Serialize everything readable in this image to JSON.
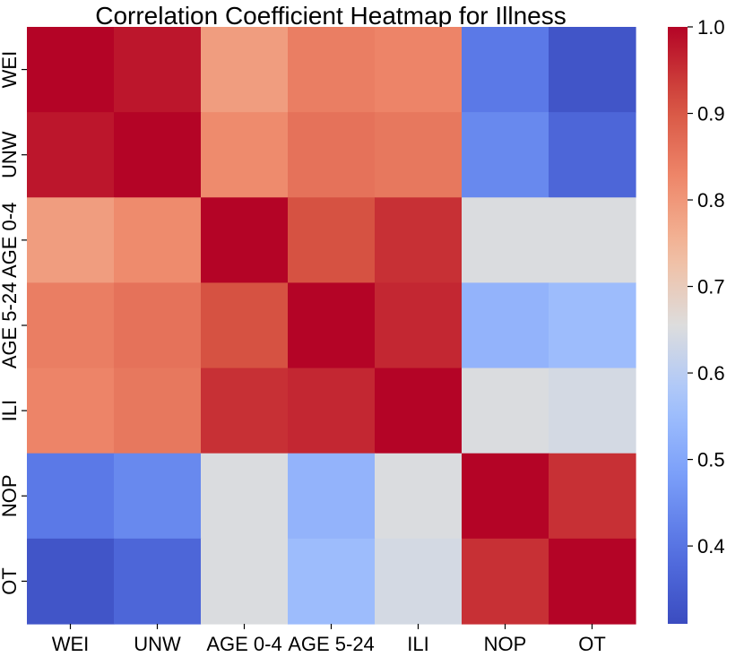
{
  "chart_data": {
    "type": "heatmap",
    "title": "Correlation Coefficient Heatmap for Illness",
    "xlabel": "",
    "ylabel": "",
    "categories": [
      "WEI",
      "UNW",
      "AGE 0-4",
      "AGE 5-24",
      "ILI",
      "NOP",
      "OT"
    ],
    "matrix": [
      [
        1.0,
        0.98,
        0.79,
        0.84,
        0.83,
        0.41,
        0.33
      ],
      [
        0.98,
        1.0,
        0.82,
        0.86,
        0.85,
        0.44,
        0.37
      ],
      [
        0.79,
        0.82,
        1.0,
        0.91,
        0.95,
        0.65,
        0.65
      ],
      [
        0.84,
        0.86,
        0.91,
        1.0,
        0.96,
        0.53,
        0.55
      ],
      [
        0.83,
        0.85,
        0.95,
        0.96,
        1.0,
        0.65,
        0.64
      ],
      [
        0.41,
        0.44,
        0.65,
        0.53,
        0.65,
        1.0,
        0.95
      ],
      [
        0.33,
        0.37,
        0.65,
        0.55,
        0.64,
        0.95,
        1.0
      ]
    ],
    "colorbar": {
      "colormap": "coolwarm",
      "range": [
        0.31,
        1.0
      ],
      "ticks": [
        0.4,
        0.5,
        0.6,
        0.7,
        0.8,
        0.9,
        1.0
      ],
      "tick_labels": [
        "0.4",
        "0.5",
        "0.6",
        "0.7",
        "0.8",
        "0.9",
        "1.0"
      ]
    },
    "grid": false
  }
}
